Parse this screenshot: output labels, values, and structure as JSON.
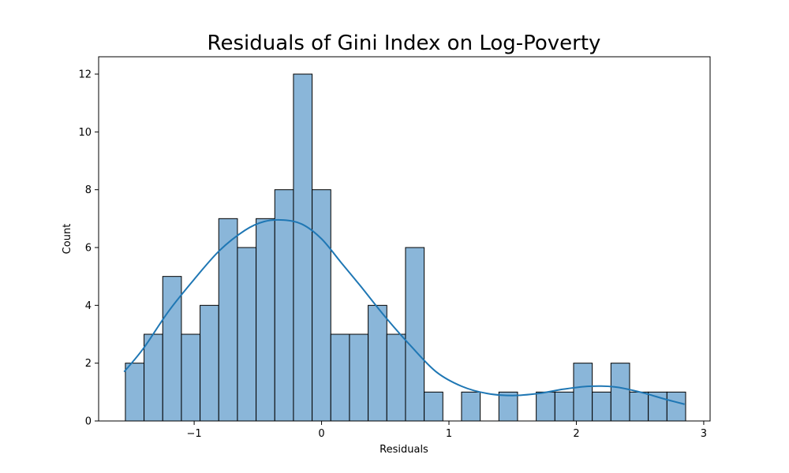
{
  "chart_data": {
    "type": "bar",
    "subtype": "histogram-with-kde",
    "title": "Residuals of Gini Index on Log-Poverty",
    "xlabel": "Residuals",
    "ylabel": "Count",
    "xlim": [
      -1.75,
      3.05
    ],
    "ylim": [
      0,
      12.6
    ],
    "xticks": [
      -1,
      0,
      1,
      2,
      3
    ],
    "xtick_labels": [
      "−1",
      "0",
      "1",
      "2",
      "3"
    ],
    "yticks": [
      0,
      2,
      4,
      6,
      8,
      10,
      12
    ],
    "ytick_labels": [
      "0",
      "2",
      "4",
      "6",
      "8",
      "10",
      "12"
    ],
    "grid": false,
    "bin_start": -1.54,
    "bin_width": 0.1466,
    "counts": [
      2,
      3,
      5,
      3,
      4,
      7,
      6,
      7,
      8,
      12,
      8,
      3,
      3,
      4,
      3,
      6,
      1,
      0,
      1,
      0,
      1,
      0,
      1,
      1,
      2,
      1,
      2,
      1,
      1,
      1
    ],
    "bar_color": "#8ab6d9",
    "bar_edge_color": "#000000",
    "kde_color": "#1f77b4",
    "kde": {
      "x": [
        -1.55,
        -1.4,
        -1.2,
        -1.0,
        -0.8,
        -0.6,
        -0.45,
        -0.3,
        -0.15,
        0.0,
        0.15,
        0.3,
        0.5,
        0.7,
        0.9,
        1.1,
        1.3,
        1.5,
        1.7,
        1.9,
        2.1,
        2.3,
        2.5,
        2.7,
        2.85
      ],
      "y": [
        1.7,
        2.5,
        3.8,
        4.9,
        5.9,
        6.6,
        6.9,
        6.95,
        6.8,
        6.3,
        5.5,
        4.7,
        3.6,
        2.6,
        1.7,
        1.2,
        0.95,
        0.88,
        0.95,
        1.1,
        1.2,
        1.18,
        1.0,
        0.75,
        0.58
      ]
    }
  }
}
